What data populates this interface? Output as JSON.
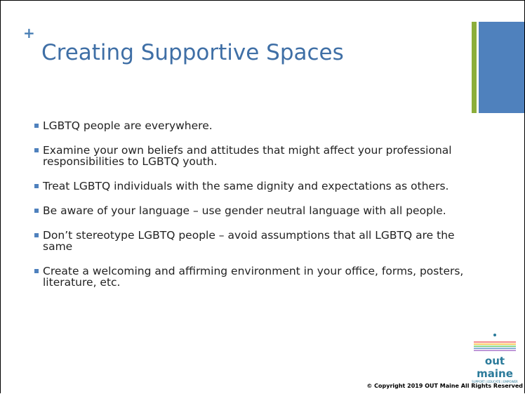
{
  "slide": {
    "plus": "+",
    "title": "Creating Supportive Spaces",
    "bullets": [
      "LGBTQ people are everywhere.",
      "Examine your own beliefs and attitudes that might affect your professional responsibilities to LGBTQ youth.",
      "Treat LGBTQ individuals with the same dignity and expectations as others.",
      "Be aware of your language – use gender neutral language with all people.",
      "Don’t stereotype LGBTQ people – avoid assumptions that all LGBTQ are the same",
      "Create a welcoming and affirming environment in your office, forms, posters, literature, etc."
    ],
    "logo": {
      "name": "out maine",
      "tagline": "SUPPORT | EDUCATE | EMPOWER"
    },
    "copyright": "© Copyright 2019 OUT Maine All Rights Reserved"
  }
}
